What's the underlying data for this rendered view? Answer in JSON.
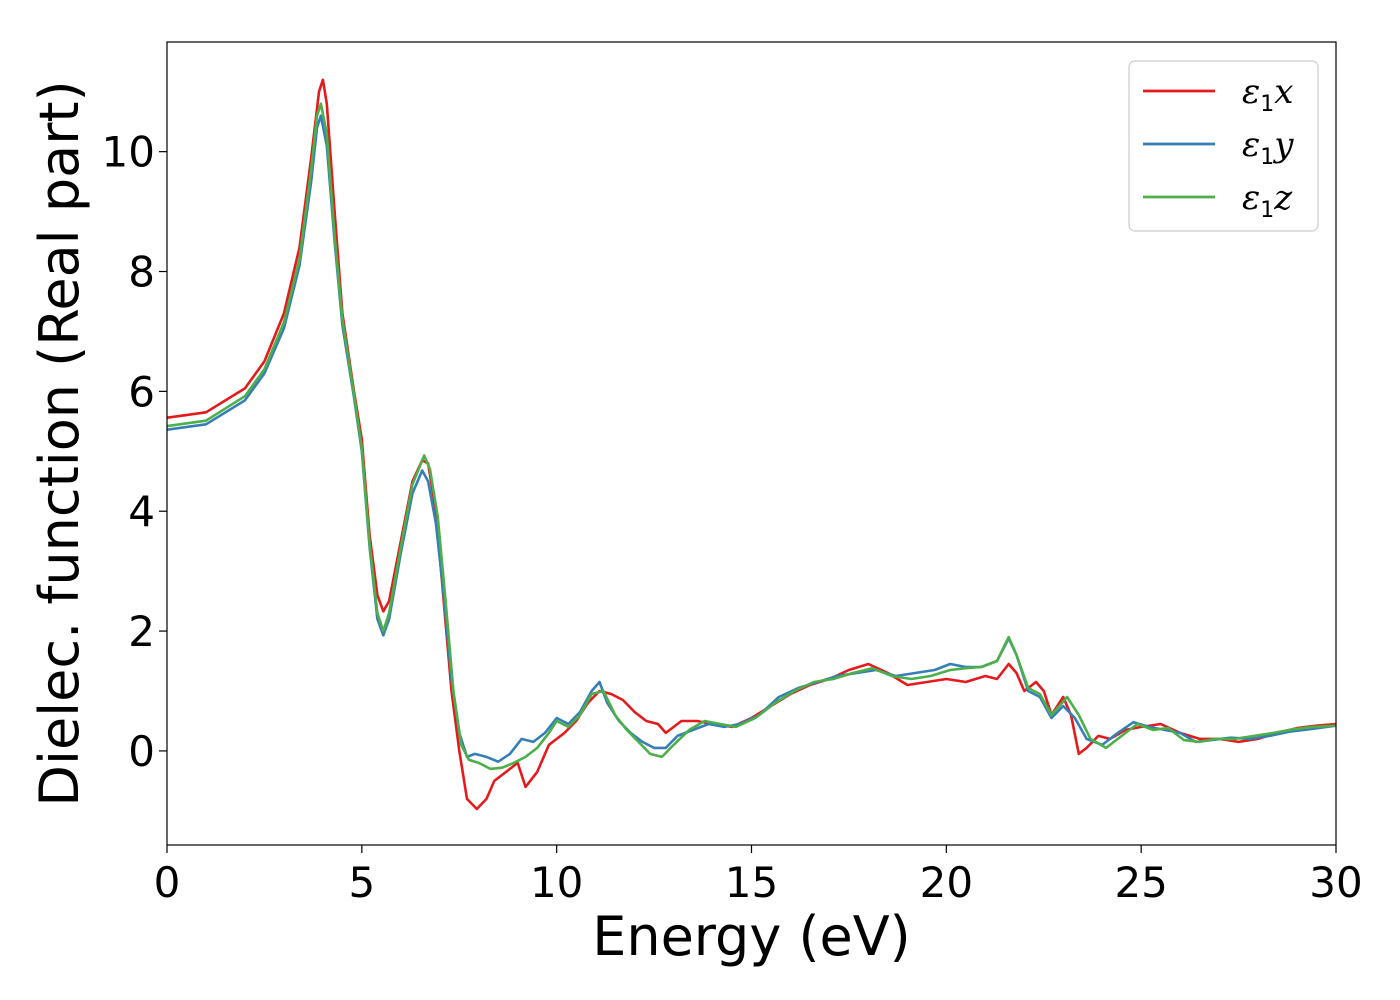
{
  "chart_data": {
    "type": "line",
    "title": "",
    "xlabel": "Energy (eV)",
    "ylabel": "Dielec. function (Real part)",
    "xlim": [
      0,
      30
    ],
    "ylim": [
      -1.57,
      11.83
    ],
    "xticks": [
      0,
      5,
      10,
      15,
      20,
      25,
      30
    ],
    "yticks": [
      0,
      2,
      4,
      6,
      8,
      10
    ],
    "grid": false,
    "legend_position": "top-right",
    "series": [
      {
        "name": "ε1x",
        "legend": {
          "sym": "ε",
          "sub": "1",
          "var": "x"
        },
        "color": "#e41a1c",
        "points": [
          [
            0,
            5.56
          ],
          [
            1,
            5.65
          ],
          [
            2,
            6.05
          ],
          [
            2.5,
            6.5
          ],
          [
            3,
            7.3
          ],
          [
            3.4,
            8.4
          ],
          [
            3.7,
            9.9
          ],
          [
            3.9,
            11.0
          ],
          [
            4.0,
            11.2
          ],
          [
            4.1,
            10.8
          ],
          [
            4.3,
            9.0
          ],
          [
            4.5,
            7.3
          ],
          [
            4.8,
            6.0
          ],
          [
            5.0,
            5.2
          ],
          [
            5.2,
            3.6
          ],
          [
            5.4,
            2.6
          ],
          [
            5.55,
            2.33
          ],
          [
            5.7,
            2.5
          ],
          [
            6.0,
            3.5
          ],
          [
            6.3,
            4.5
          ],
          [
            6.55,
            4.85
          ],
          [
            6.7,
            4.8
          ],
          [
            6.9,
            4.0
          ],
          [
            7.1,
            2.5
          ],
          [
            7.3,
            1.0
          ],
          [
            7.5,
            0.0
          ],
          [
            7.7,
            -0.8
          ],
          [
            7.95,
            -0.97
          ],
          [
            8.2,
            -0.8
          ],
          [
            8.4,
            -0.5
          ],
          [
            8.8,
            -0.3
          ],
          [
            9.0,
            -0.2
          ],
          [
            9.2,
            -0.6
          ],
          [
            9.5,
            -0.35
          ],
          [
            9.8,
            0.1
          ],
          [
            10.2,
            0.3
          ],
          [
            10.5,
            0.5
          ],
          [
            10.8,
            0.8
          ],
          [
            11.1,
            1.0
          ],
          [
            11.4,
            0.95
          ],
          [
            11.7,
            0.85
          ],
          [
            12.0,
            0.65
          ],
          [
            12.3,
            0.5
          ],
          [
            12.6,
            0.45
          ],
          [
            12.8,
            0.3
          ],
          [
            13.2,
            0.5
          ],
          [
            13.6,
            0.5
          ],
          [
            14.0,
            0.45
          ],
          [
            14.5,
            0.4
          ],
          [
            15.0,
            0.55
          ],
          [
            15.5,
            0.75
          ],
          [
            16.0,
            0.95
          ],
          [
            16.5,
            1.1
          ],
          [
            17.0,
            1.2
          ],
          [
            17.5,
            1.35
          ],
          [
            18.0,
            1.45
          ],
          [
            18.5,
            1.3
          ],
          [
            19.0,
            1.1
          ],
          [
            19.5,
            1.15
          ],
          [
            20.0,
            1.2
          ],
          [
            20.5,
            1.15
          ],
          [
            21.0,
            1.25
          ],
          [
            21.3,
            1.2
          ],
          [
            21.6,
            1.45
          ],
          [
            21.8,
            1.3
          ],
          [
            22.0,
            1.0
          ],
          [
            22.3,
            1.15
          ],
          [
            22.5,
            1.0
          ],
          [
            22.7,
            0.6
          ],
          [
            23.0,
            0.9
          ],
          [
            23.2,
            0.6
          ],
          [
            23.4,
            -0.05
          ],
          [
            23.6,
            0.05
          ],
          [
            23.9,
            0.25
          ],
          [
            24.2,
            0.2
          ],
          [
            24.6,
            0.35
          ],
          [
            25.0,
            0.4
          ],
          [
            25.5,
            0.45
          ],
          [
            26.0,
            0.3
          ],
          [
            26.5,
            0.2
          ],
          [
            27.0,
            0.2
          ],
          [
            27.5,
            0.15
          ],
          [
            28.0,
            0.2
          ],
          [
            28.5,
            0.3
          ],
          [
            29.0,
            0.38
          ],
          [
            29.5,
            0.42
          ],
          [
            30.0,
            0.45
          ]
        ]
      },
      {
        "name": "ε1y",
        "legend": {
          "sym": "ε",
          "sub": "1",
          "var": "y"
        },
        "color": "#377eb8",
        "points": [
          [
            0,
            5.36
          ],
          [
            1,
            5.45
          ],
          [
            2,
            5.85
          ],
          [
            2.5,
            6.3
          ],
          [
            3,
            7.05
          ],
          [
            3.4,
            8.1
          ],
          [
            3.7,
            9.5
          ],
          [
            3.85,
            10.4
          ],
          [
            3.95,
            10.6
          ],
          [
            4.1,
            10.1
          ],
          [
            4.3,
            8.5
          ],
          [
            4.5,
            7.1
          ],
          [
            4.8,
            5.9
          ],
          [
            5.0,
            5.0
          ],
          [
            5.2,
            3.4
          ],
          [
            5.4,
            2.2
          ],
          [
            5.55,
            1.93
          ],
          [
            5.7,
            2.2
          ],
          [
            6.0,
            3.3
          ],
          [
            6.3,
            4.3
          ],
          [
            6.55,
            4.68
          ],
          [
            6.7,
            4.5
          ],
          [
            6.9,
            3.8
          ],
          [
            7.1,
            2.6
          ],
          [
            7.3,
            1.2
          ],
          [
            7.5,
            0.3
          ],
          [
            7.7,
            -0.1
          ],
          [
            7.9,
            -0.05
          ],
          [
            8.2,
            -0.1
          ],
          [
            8.5,
            -0.18
          ],
          [
            8.8,
            -0.05
          ],
          [
            9.1,
            0.2
          ],
          [
            9.4,
            0.15
          ],
          [
            9.7,
            0.3
          ],
          [
            10.0,
            0.55
          ],
          [
            10.3,
            0.45
          ],
          [
            10.6,
            0.65
          ],
          [
            10.9,
            1.0
          ],
          [
            11.1,
            1.15
          ],
          [
            11.3,
            0.8
          ],
          [
            11.6,
            0.5
          ],
          [
            11.9,
            0.3
          ],
          [
            12.2,
            0.15
          ],
          [
            12.5,
            0.05
          ],
          [
            12.8,
            0.05
          ],
          [
            13.1,
            0.25
          ],
          [
            13.5,
            0.35
          ],
          [
            13.9,
            0.45
          ],
          [
            14.3,
            0.4
          ],
          [
            14.7,
            0.45
          ],
          [
            15.2,
            0.6
          ],
          [
            15.7,
            0.9
          ],
          [
            16.2,
            1.05
          ],
          [
            16.7,
            1.15
          ],
          [
            17.2,
            1.25
          ],
          [
            17.7,
            1.3
          ],
          [
            18.2,
            1.35
          ],
          [
            18.7,
            1.25
          ],
          [
            19.2,
            1.3
          ],
          [
            19.7,
            1.35
          ],
          [
            20.1,
            1.45
          ],
          [
            20.5,
            1.4
          ],
          [
            20.9,
            1.4
          ],
          [
            21.3,
            1.5
          ],
          [
            21.6,
            1.88
          ],
          [
            21.8,
            1.6
          ],
          [
            22.1,
            1.0
          ],
          [
            22.4,
            0.9
          ],
          [
            22.7,
            0.55
          ],
          [
            23.0,
            0.75
          ],
          [
            23.3,
            0.55
          ],
          [
            23.6,
            0.2
          ],
          [
            24.0,
            0.1
          ],
          [
            24.4,
            0.3
          ],
          [
            24.8,
            0.48
          ],
          [
            25.2,
            0.4
          ],
          [
            25.6,
            0.35
          ],
          [
            26.0,
            0.3
          ],
          [
            26.4,
            0.15
          ],
          [
            26.8,
            0.18
          ],
          [
            27.3,
            0.22
          ],
          [
            27.8,
            0.2
          ],
          [
            28.3,
            0.25
          ],
          [
            28.8,
            0.32
          ],
          [
            29.3,
            0.36
          ],
          [
            30.0,
            0.42
          ]
        ]
      },
      {
        "name": "ε1z",
        "legend": {
          "sym": "ε",
          "sub": "1",
          "var": "z"
        },
        "color": "#4daf4a",
        "points": [
          [
            0,
            5.42
          ],
          [
            1,
            5.51
          ],
          [
            2,
            5.92
          ],
          [
            2.5,
            6.37
          ],
          [
            3,
            7.15
          ],
          [
            3.4,
            8.2
          ],
          [
            3.7,
            9.7
          ],
          [
            3.85,
            10.6
          ],
          [
            3.95,
            10.8
          ],
          [
            4.1,
            10.3
          ],
          [
            4.3,
            8.6
          ],
          [
            4.5,
            7.2
          ],
          [
            4.8,
            5.95
          ],
          [
            5.0,
            5.05
          ],
          [
            5.2,
            3.45
          ],
          [
            5.4,
            2.3
          ],
          [
            5.55,
            2.0
          ],
          [
            5.7,
            2.3
          ],
          [
            6.0,
            3.4
          ],
          [
            6.3,
            4.45
          ],
          [
            6.6,
            4.93
          ],
          [
            6.75,
            4.7
          ],
          [
            6.95,
            3.9
          ],
          [
            7.15,
            2.5
          ],
          [
            7.35,
            1.0
          ],
          [
            7.55,
            0.1
          ],
          [
            7.75,
            -0.15
          ],
          [
            8.0,
            -0.2
          ],
          [
            8.3,
            -0.3
          ],
          [
            8.6,
            -0.28
          ],
          [
            8.9,
            -0.2
          ],
          [
            9.2,
            -0.1
          ],
          [
            9.5,
            0.05
          ],
          [
            9.8,
            0.3
          ],
          [
            10.0,
            0.5
          ],
          [
            10.3,
            0.4
          ],
          [
            10.6,
            0.6
          ],
          [
            10.9,
            0.95
          ],
          [
            11.2,
            1.0
          ],
          [
            11.5,
            0.6
          ],
          [
            11.8,
            0.35
          ],
          [
            12.1,
            0.15
          ],
          [
            12.4,
            -0.05
          ],
          [
            12.7,
            -0.1
          ],
          [
            13.0,
            0.1
          ],
          [
            13.4,
            0.35
          ],
          [
            13.8,
            0.5
          ],
          [
            14.2,
            0.45
          ],
          [
            14.6,
            0.4
          ],
          [
            15.1,
            0.55
          ],
          [
            15.6,
            0.8
          ],
          [
            16.1,
            1.0
          ],
          [
            16.6,
            1.15
          ],
          [
            17.1,
            1.2
          ],
          [
            17.6,
            1.3
          ],
          [
            18.1,
            1.38
          ],
          [
            18.6,
            1.25
          ],
          [
            19.1,
            1.2
          ],
          [
            19.6,
            1.25
          ],
          [
            20.1,
            1.35
          ],
          [
            20.5,
            1.38
          ],
          [
            20.9,
            1.4
          ],
          [
            21.3,
            1.5
          ],
          [
            21.6,
            1.9
          ],
          [
            21.8,
            1.6
          ],
          [
            22.1,
            1.05
          ],
          [
            22.4,
            0.95
          ],
          [
            22.7,
            0.6
          ],
          [
            23.1,
            0.9
          ],
          [
            23.4,
            0.6
          ],
          [
            23.7,
            0.2
          ],
          [
            24.1,
            0.05
          ],
          [
            24.5,
            0.25
          ],
          [
            24.9,
            0.45
          ],
          [
            25.3,
            0.35
          ],
          [
            25.7,
            0.38
          ],
          [
            26.1,
            0.18
          ],
          [
            26.5,
            0.15
          ],
          [
            26.9,
            0.2
          ],
          [
            27.4,
            0.2
          ],
          [
            27.9,
            0.25
          ],
          [
            28.4,
            0.3
          ],
          [
            28.9,
            0.36
          ],
          [
            29.4,
            0.4
          ],
          [
            30.0,
            0.42
          ]
        ]
      }
    ]
  }
}
